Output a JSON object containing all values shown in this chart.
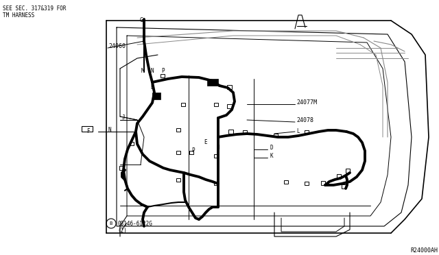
{
  "bg_color": "#ffffff",
  "line_color": "#000000",
  "fig_width": 6.4,
  "fig_height": 3.72,
  "dpi": 100,
  "top_left_text": "SEE SEC. 317&319 FOR\nTM HARNESS",
  "ref_text": "R24000AH",
  "bottom_part": "B08146-6122G\n(2)"
}
